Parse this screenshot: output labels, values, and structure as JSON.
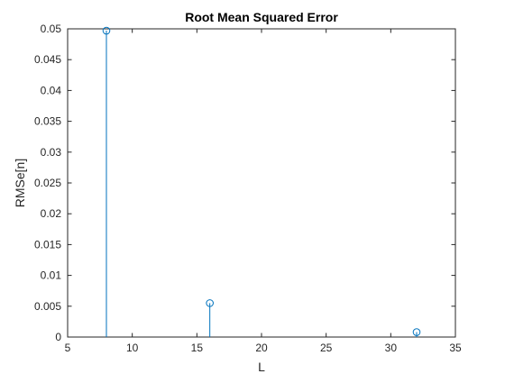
{
  "chart_data": {
    "type": "stem",
    "title": "Root Mean Squared Error",
    "xlabel": "L",
    "ylabel": "RMSe[n]",
    "xlim": [
      5,
      35
    ],
    "ylim": [
      0,
      0.05
    ],
    "xticks": [
      5,
      10,
      15,
      20,
      25,
      30,
      35
    ],
    "xtick_labels": [
      "5",
      "10",
      "15",
      "20",
      "25",
      "30",
      "35"
    ],
    "yticks": [
      0,
      0.005,
      0.01,
      0.015,
      0.02,
      0.025,
      0.03,
      0.035,
      0.04,
      0.045,
      0.05
    ],
    "ytick_labels": [
      "0",
      "0.005",
      "0.01",
      "0.015",
      "0.02",
      "0.025",
      "0.03",
      "0.035",
      "0.04",
      "0.045",
      "0.05"
    ],
    "grid": false,
    "box": true,
    "marker": "circle-open",
    "series": [
      {
        "color": "#0072BD",
        "points": [
          {
            "x": 8,
            "y": 0.0497
          },
          {
            "x": 16,
            "y": 0.0055
          },
          {
            "x": 32,
            "y": 0.0008
          }
        ]
      }
    ]
  }
}
